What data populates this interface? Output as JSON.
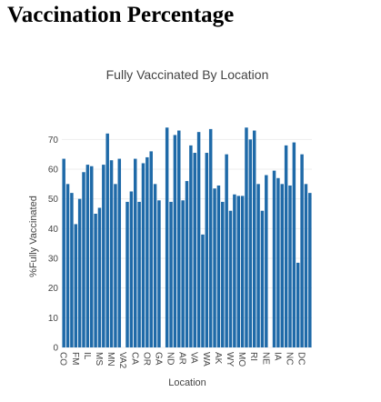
{
  "header": {
    "title": "Vaccination Percentage"
  },
  "chart_data": {
    "type": "bar",
    "title": "Fully Vaccinated By Location",
    "x_label": "Location",
    "y_label": "%Fully Vaccinated",
    "color": "#1f6aa8",
    "grid": true,
    "categories": [
      "CO",
      null,
      null,
      "FM",
      null,
      null,
      "IL",
      null,
      null,
      "MS",
      null,
      null,
      "MN",
      null,
      null,
      "VA2",
      null,
      null,
      "CA",
      null,
      null,
      "OR",
      null,
      null,
      "GA",
      null,
      null,
      "ND",
      null,
      null,
      "AR",
      null,
      null,
      "VA",
      null,
      null,
      "WA",
      null,
      null,
      "AK",
      null,
      null,
      "WY",
      null,
      null,
      "MO",
      null,
      null,
      "RI",
      null,
      null,
      "NE",
      null,
      null,
      "IA",
      null,
      null,
      "NC",
      null,
      null,
      "DC",
      null,
      null
    ],
    "values": [
      63.5,
      55,
      52,
      41.5,
      50,
      59,
      61.5,
      61,
      45,
      47,
      61.5,
      72,
      63,
      55,
      63.5,
      null,
      49,
      52.5,
      63.5,
      49,
      62,
      64,
      66,
      55,
      49.5,
      null,
      74,
      49,
      71.5,
      73,
      49.5,
      56,
      68,
      65.5,
      72.5,
      38,
      65.5,
      73.5,
      53.5,
      54.5,
      49,
      65,
      46,
      51.5,
      51,
      51,
      74,
      70,
      73,
      55,
      46,
      58,
      null,
      59.5,
      57,
      55,
      68,
      54.5,
      69,
      28.5,
      65,
      55,
      52
    ],
    "ylim": [
      0,
      75
    ],
    "yticks": [
      0,
      10,
      20,
      30,
      40,
      50,
      60,
      70
    ]
  }
}
